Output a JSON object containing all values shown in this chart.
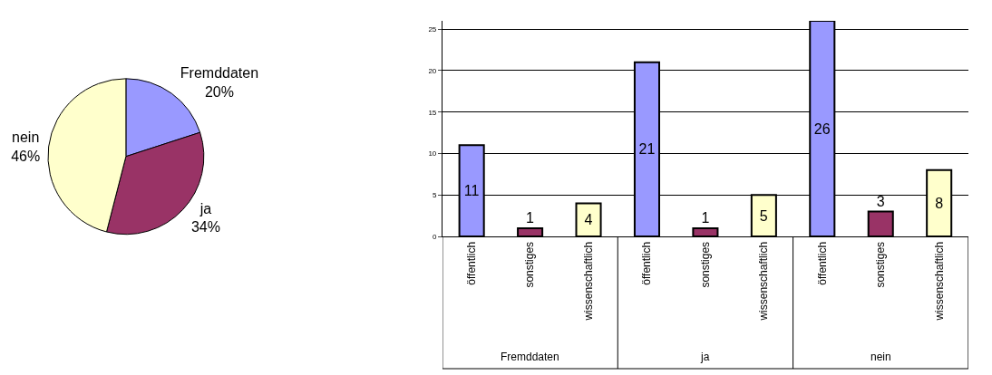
{
  "chart_data": [
    {
      "type": "pie",
      "categories": [
        "Fremddaten",
        "ja",
        "nein"
      ],
      "values": [
        20,
        34,
        46
      ],
      "colors": [
        "#9999ff",
        "#993366",
        "#ffffcc"
      ],
      "value_labels": [
        "20%",
        "34%",
        "46%"
      ]
    },
    {
      "type": "bar",
      "categories": [
        "öffentlich",
        "sonstiges",
        "wissenschaftlich",
        "öffentlich",
        "sonstiges",
        "wissenschaftlich",
        "öffentlich",
        "sonstiges",
        "wissenschaftlich"
      ],
      "values": [
        11,
        1,
        4,
        21,
        1,
        5,
        26,
        3,
        8
      ],
      "colors": [
        "#9999ff",
        "#993366",
        "#ffffcc",
        "#9999ff",
        "#993366",
        "#ffffcc",
        "#9999ff",
        "#993366",
        "#ffffcc"
      ],
      "ylim": [
        0,
        26
      ],
      "yticks": [
        0,
        5,
        10,
        15,
        20,
        25
      ],
      "grid": "y",
      "data_labels": true,
      "annotations": [
        "Fremddaten",
        "ja",
        "nein"
      ]
    }
  ]
}
